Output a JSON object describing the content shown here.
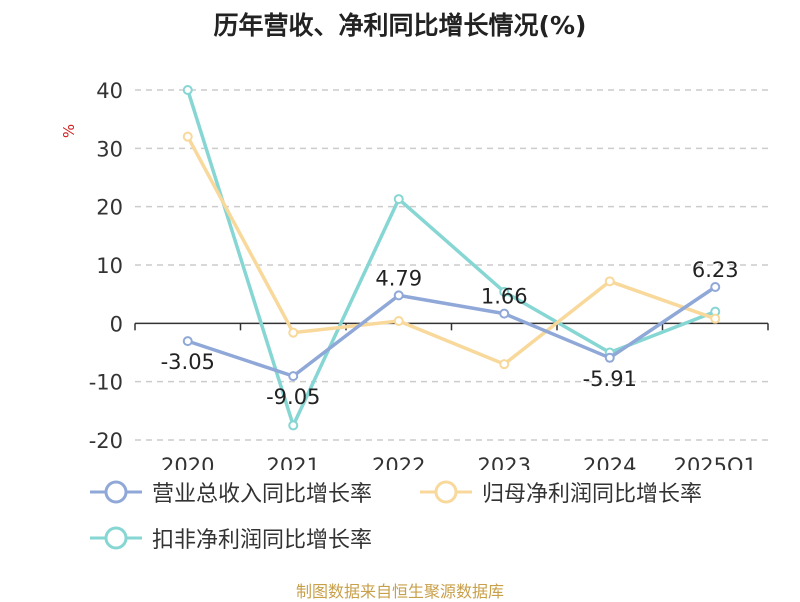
{
  "title": "历年营收、净利同比增长情况(%)",
  "source": "制图数据来自恒生聚源数据库",
  "chart_data": {
    "type": "line",
    "ylabel": "%",
    "categories": [
      "2020",
      "2021",
      "2022",
      "2023",
      "2024",
      "2025Q1"
    ],
    "ylim": [
      -20,
      40
    ],
    "yticks": [
      -20,
      -10,
      0,
      10,
      20,
      30,
      40
    ],
    "grid": true,
    "legend_position": "bottom",
    "series": [
      {
        "name": "营业总收入同比增长率",
        "color": "#8fa8d8",
        "values": [
          -3.05,
          -9.05,
          4.79,
          1.66,
          -5.91,
          6.23
        ],
        "data_labels": [
          "-3.05",
          "-9.05",
          "4.79",
          "1.66",
          "-5.91",
          "6.23"
        ]
      },
      {
        "name": "归母净利润同比增长率",
        "color": "#f8d99b",
        "values": [
          32.0,
          -1.6,
          0.4,
          -7.0,
          7.2,
          0.8
        ]
      },
      {
        "name": "扣非净利润同比增长率",
        "color": "#86d6d4",
        "values": [
          40.0,
          -17.5,
          21.3,
          5.4,
          -5.0,
          2.0
        ]
      }
    ]
  }
}
